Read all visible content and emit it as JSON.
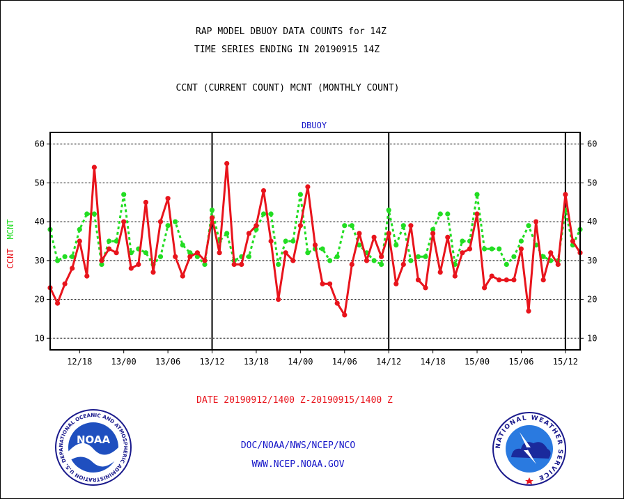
{
  "header": {
    "title_line1": "RAP MODEL DBUOY DATA COUNTS for 14Z",
    "title_line2": "TIME SERIES ENDING IN 20190915 14Z",
    "subtitle": "CCNT (CURRENT COUNT) MCNT (MONTHLY COUNT)"
  },
  "footer": {
    "date_range": "DATE 20190912/1400 Z-20190915/1400 Z",
    "org": "DOC/NOAA/NWS/NCEP/NCO",
    "url": "WWW.NCEP.NOAA.GOV"
  },
  "logos": {
    "noaa_label": "NOAA",
    "noaa_ring_text": "NATIONAL OCEANIC AND ATMOSPHERIC ADMINISTRATION U.S. DEPARTMENT OF COMMERCE",
    "nws_ring_text": "NATIONAL WEATHER SERVICE"
  },
  "colors": {
    "ccnt": "#e8141c",
    "mcnt": "#22dd22",
    "label_blue": "#1515c8",
    "title_red": "#e8141c"
  },
  "chart_data": {
    "type": "line",
    "title": "DBUOY",
    "ylabel_left_ccnt": "CCNT",
    "ylabel_left_mcnt": "MCNT",
    "ylim": [
      7,
      63
    ],
    "yticks": [
      10,
      20,
      30,
      40,
      50,
      60
    ],
    "xlim": [
      0,
      72
    ],
    "x_tick_labels": [
      {
        "x": 4,
        "label": "12/18"
      },
      {
        "x": 10,
        "label": "13/00"
      },
      {
        "x": 16,
        "label": "13/06"
      },
      {
        "x": 22,
        "label": "13/12"
      },
      {
        "x": 28,
        "label": "13/18"
      },
      {
        "x": 34,
        "label": "14/00"
      },
      {
        "x": 40,
        "label": "14/06"
      },
      {
        "x": 46,
        "label": "14/12"
      },
      {
        "x": 52,
        "label": "14/18"
      },
      {
        "x": 58,
        "label": "15/00"
      },
      {
        "x": 64,
        "label": "15/06"
      },
      {
        "x": 70,
        "label": "15/12"
      }
    ],
    "day_dividers": [
      22,
      46,
      70
    ],
    "grid": true,
    "series": [
      {
        "name": "CCNT",
        "color": "#e8141c",
        "values": [
          23,
          19,
          24,
          28,
          35,
          26,
          54,
          30,
          33,
          32,
          40,
          28,
          29,
          45,
          27,
          40,
          46,
          31,
          26,
          31,
          32,
          30,
          41,
          32,
          55,
          29,
          29,
          37,
          39,
          48,
          35,
          20,
          32,
          30,
          39,
          49,
          34,
          24,
          24,
          19,
          16,
          29,
          37,
          30,
          36,
          31,
          37,
          24,
          29,
          39,
          25,
          23,
          37,
          27,
          36,
          26,
          32,
          33,
          42,
          23,
          26,
          25,
          25,
          25,
          33,
          17,
          40,
          25,
          32,
          29,
          47,
          35,
          32
        ]
      },
      {
        "name": "MCNT",
        "color": "#22dd22",
        "values": [
          38,
          30,
          31,
          31,
          38,
          42,
          42,
          29,
          35,
          35,
          47,
          32,
          33,
          32,
          29,
          31,
          39,
          40,
          34,
          32,
          31,
          29,
          43,
          35,
          37,
          30,
          31,
          31,
          38,
          42,
          42,
          29,
          35,
          35,
          47,
          32,
          33,
          33,
          30,
          31,
          39,
          39,
          34,
          32,
          30,
          29,
          43,
          34,
          39,
          30,
          31,
          31,
          38,
          42,
          42,
          29,
          35,
          35,
          47,
          33,
          33,
          33,
          29,
          31,
          35,
          39,
          34,
          31,
          30,
          30,
          43,
          34,
          38
        ]
      }
    ]
  }
}
